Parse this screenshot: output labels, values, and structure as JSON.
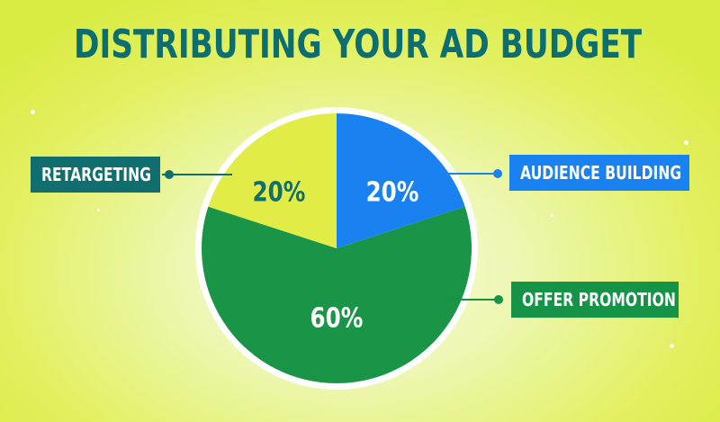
{
  "title": "DISTRIBUTING YOUR AD BUDGET",
  "chart_data": {
    "type": "pie",
    "title": "DISTRIBUTING YOUR AD BUDGET",
    "slices": [
      {
        "label": "AUDIENCE BUILDING",
        "value": 20,
        "display": "20%",
        "color": "#1a82f0"
      },
      {
        "label": "OFFER PROMOTION",
        "value": 60,
        "display": "60%",
        "color": "#1a9447"
      },
      {
        "label": "RETARGETING",
        "value": 20,
        "display": "20%",
        "color": "#e1ec46"
      }
    ],
    "start": "12 o'clock",
    "direction": "clockwise"
  },
  "colors": {
    "title": "#0d6e72",
    "retargeting_box": "#106e6e",
    "audience_box": "#1a82f0",
    "offer_box": "#159448",
    "pie_border": "#ffffff"
  }
}
